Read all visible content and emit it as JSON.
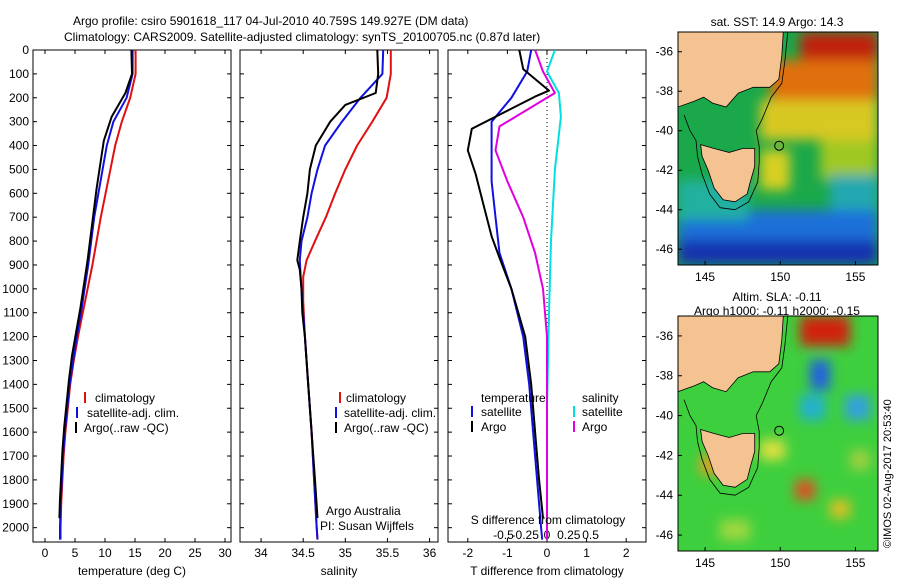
{
  "header": {
    "title_line1": "Argo profile: csiro 5901618_117 04-Jul-2010 40.759S 149.927E (DM data)",
    "title_line2": "Climatology: CARS2009. Satellite-adjusted climatology: synTS_20100705.nc (0.87d later)"
  },
  "colors": {
    "climatology": "#e01010",
    "satellite": "#1010e0",
    "argo": "#000000",
    "salinity_satellite": "#00e0e0",
    "salinity_argo": "#e000e0",
    "land": "#f5c392",
    "deep_ocean": "#101f90"
  },
  "timestamp": "©IMOS 02-Aug-2017 20:53:40",
  "chart_data": [
    {
      "type": "line",
      "id": "temperature",
      "xlabel": "temperature (deg C)",
      "xlim": [
        -2,
        31
      ],
      "ylim": [
        2060,
        0
      ],
      "x_ticks": [
        0,
        5,
        10,
        15,
        20,
        25,
        30
      ],
      "y_ticks": [
        0,
        100,
        200,
        300,
        400,
        500,
        600,
        700,
        800,
        900,
        1000,
        1100,
        1200,
        1300,
        1400,
        1500,
        1600,
        1700,
        1800,
        1900,
        2000
      ],
      "legend": [
        "climatology",
        "satellite-adj. clim.",
        "Argo(..raw -QC)"
      ],
      "series": [
        {
          "name": "climatology",
          "color": "#e01010",
          "points": [
            [
              15.1,
              0
            ],
            [
              15.1,
              100
            ],
            [
              14.2,
              200
            ],
            [
              12.8,
              300
            ],
            [
              11.7,
              400
            ],
            [
              10.9,
              500
            ],
            [
              10.1,
              600
            ],
            [
              9.3,
              700
            ],
            [
              8.6,
              800
            ],
            [
              7.9,
              900
            ],
            [
              7.1,
              1000
            ],
            [
              6.3,
              1100
            ],
            [
              5.5,
              1200
            ],
            [
              4.8,
              1300
            ],
            [
              4.2,
              1400
            ],
            [
              3.8,
              1500
            ],
            [
              3.4,
              1600
            ],
            [
              3.1,
              1700
            ],
            [
              2.9,
              1800
            ],
            [
              2.7,
              1900
            ],
            [
              2.6,
              2000
            ],
            [
              2.6,
              2050
            ]
          ]
        },
        {
          "name": "satellite-adj. clim.",
          "color": "#1010e0",
          "points": [
            [
              14.6,
              0
            ],
            [
              14.6,
              100
            ],
            [
              13.6,
              200
            ],
            [
              11.4,
              300
            ],
            [
              10.3,
              400
            ],
            [
              9.6,
              500
            ],
            [
              8.9,
              600
            ],
            [
              8.2,
              700
            ],
            [
              7.7,
              800
            ],
            [
              7.2,
              900
            ],
            [
              6.6,
              1000
            ],
            [
              6.0,
              1100
            ],
            [
              5.3,
              1200
            ],
            [
              4.7,
              1300
            ],
            [
              4.1,
              1400
            ],
            [
              3.7,
              1500
            ],
            [
              3.3,
              1600
            ],
            [
              3.0,
              1700
            ],
            [
              2.8,
              1800
            ],
            [
              2.6,
              1900
            ],
            [
              2.5,
              2000
            ],
            [
              2.5,
              2050
            ]
          ]
        },
        {
          "name": "Argo(..raw -QC)",
          "color": "#000000",
          "points": [
            [
              14.4,
              0
            ],
            [
              14.5,
              100
            ],
            [
              13.4,
              180
            ],
            [
              11.1,
              280
            ],
            [
              9.8,
              380
            ],
            [
              9.2,
              480
            ],
            [
              8.6,
              580
            ],
            [
              8.1,
              680
            ],
            [
              7.6,
              780
            ],
            [
              7.1,
              880
            ],
            [
              6.5,
              980
            ],
            [
              5.9,
              1080
            ],
            [
              5.2,
              1180
            ],
            [
              4.5,
              1280
            ],
            [
              4.0,
              1380
            ],
            [
              3.6,
              1480
            ],
            [
              3.2,
              1580
            ],
            [
              2.9,
              1680
            ],
            [
              2.7,
              1780
            ],
            [
              2.5,
              1880
            ],
            [
              2.4,
              1960
            ]
          ]
        }
      ]
    },
    {
      "type": "line",
      "id": "salinity",
      "xlabel": "salinity",
      "xlim": [
        33.75,
        36.1
      ],
      "ylim": [
        2060,
        0
      ],
      "x_ticks": [
        34,
        34.5,
        35,
        35.5,
        36
      ],
      "x_tick_labels": [
        "34",
        "34.5",
        "35",
        "35.5",
        "36"
      ],
      "legend": [
        "climatology",
        "satellite-adj. clim.",
        "Argo(..raw -QC)"
      ],
      "annotation": [
        "Argo Australia",
        "PI: Susan Wijffels"
      ],
      "series": [
        {
          "name": "climatology",
          "color": "#e01010",
          "points": [
            [
              35.54,
              0
            ],
            [
              35.54,
              100
            ],
            [
              35.49,
              200
            ],
            [
              35.32,
              300
            ],
            [
              35.14,
              400
            ],
            [
              35.0,
              500
            ],
            [
              34.88,
              600
            ],
            [
              34.77,
              700
            ],
            [
              34.64,
              800
            ],
            [
              34.54,
              880
            ],
            [
              34.5,
              950
            ],
            [
              34.5,
              1050
            ],
            [
              34.52,
              1200
            ],
            [
              34.56,
              1400
            ],
            [
              34.6,
              1600
            ],
            [
              34.63,
              1800
            ],
            [
              34.66,
              2000
            ],
            [
              34.67,
              2050
            ]
          ]
        },
        {
          "name": "satellite-adj. clim.",
          "color": "#1010e0",
          "points": [
            [
              35.45,
              0
            ],
            [
              35.44,
              100
            ],
            [
              35.18,
              200
            ],
            [
              34.96,
              300
            ],
            [
              34.76,
              400
            ],
            [
              34.67,
              500
            ],
            [
              34.6,
              600
            ],
            [
              34.55,
              700
            ],
            [
              34.48,
              800
            ],
            [
              34.46,
              880
            ],
            [
              34.47,
              950
            ],
            [
              34.49,
              1050
            ],
            [
              34.52,
              1200
            ],
            [
              34.56,
              1400
            ],
            [
              34.6,
              1600
            ],
            [
              34.63,
              1800
            ],
            [
              34.66,
              2000
            ],
            [
              34.67,
              2050
            ]
          ]
        },
        {
          "name": "Argo(..raw -QC)",
          "color": "#000000",
          "points": [
            [
              35.38,
              0
            ],
            [
              35.39,
              100
            ],
            [
              35.36,
              180
            ],
            [
              35.0,
              230
            ],
            [
              34.82,
              300
            ],
            [
              34.65,
              400
            ],
            [
              34.58,
              500
            ],
            [
              34.55,
              600
            ],
            [
              34.5,
              700
            ],
            [
              34.46,
              800
            ],
            [
              34.43,
              880
            ],
            [
              34.46,
              920
            ],
            [
              34.48,
              1000
            ],
            [
              34.49,
              1100
            ],
            [
              34.52,
              1200
            ],
            [
              34.56,
              1400
            ],
            [
              34.6,
              1600
            ],
            [
              34.64,
              1800
            ],
            [
              34.67,
              1960
            ]
          ]
        }
      ]
    },
    {
      "type": "line",
      "id": "difference",
      "xlabel": "T difference from climatology",
      "xlabel2": "S difference from climatology",
      "xlim": [
        -2.5,
        2.5
      ],
      "ylim": [
        2060,
        0
      ],
      "x_ticks": [
        -2,
        -1,
        0,
        1,
        2
      ],
      "x2_ticks": [
        -0.5,
        -0.25,
        0,
        0.25,
        0.5
      ],
      "x2_tick_labels": [
        "-0.5",
        "-0.25",
        "0",
        "0.25",
        "0.5"
      ],
      "zero_line": "dotted",
      "legend_temperature": [
        "temperature",
        "satellite",
        "Argo"
      ],
      "legend_salinity": [
        "salinity",
        "satellite",
        "Argo"
      ],
      "series": [
        {
          "name": "satellite",
          "variable": "temperature",
          "color": "#1010e0",
          "points": [
            [
              -0.4,
              0
            ],
            [
              -0.5,
              90
            ],
            [
              -0.9,
              200
            ],
            [
              -1.4,
              300
            ],
            [
              -1.4,
              400
            ],
            [
              -1.4,
              550
            ],
            [
              -1.3,
              700
            ],
            [
              -1.2,
              850
            ],
            [
              -0.9,
              1000
            ],
            [
              -0.6,
              1200
            ],
            [
              -0.45,
              1400
            ],
            [
              -0.35,
              1600
            ],
            [
              -0.25,
              1800
            ],
            [
              -0.15,
              2000
            ],
            [
              -0.12,
              2050
            ]
          ]
        },
        {
          "name": "Argo",
          "variable": "temperature",
          "color": "#000000",
          "points": [
            [
              -0.7,
              0
            ],
            [
              -0.6,
              80
            ],
            [
              0.05,
              170
            ],
            [
              -0.3,
              195
            ],
            [
              -1.9,
              330
            ],
            [
              -2.0,
              420
            ],
            [
              -1.8,
              520
            ],
            [
              -1.6,
              650
            ],
            [
              -1.4,
              780
            ],
            [
              -1.2,
              870
            ],
            [
              -0.9,
              1000
            ],
            [
              -0.55,
              1200
            ],
            [
              -0.4,
              1400
            ],
            [
              -0.3,
              1600
            ],
            [
              -0.2,
              1800
            ],
            [
              -0.1,
              1960
            ]
          ]
        },
        {
          "name": "satellite",
          "variable": "salinity",
          "color": "#00e0e0",
          "points": [
            [
              0.2,
              0
            ],
            [
              0.0,
              90
            ],
            [
              0.3,
              180
            ],
            [
              0.35,
              280
            ],
            [
              0.2,
              500
            ],
            [
              0.1,
              800
            ],
            [
              0.05,
              1100
            ],
            [
              0.0,
              1500
            ],
            [
              0.0,
              2050
            ]
          ]
        },
        {
          "name": "Argo",
          "variable": "salinity",
          "color": "#e000e0",
          "points": [
            [
              -0.3,
              0
            ],
            [
              -0.1,
              90
            ],
            [
              0.2,
              180
            ],
            [
              -1.2,
              320
            ],
            [
              -1.3,
              420
            ],
            [
              -1.0,
              550
            ],
            [
              -0.6,
              700
            ],
            [
              -0.3,
              850
            ],
            [
              -0.1,
              1000
            ],
            [
              0.0,
              1200
            ],
            [
              0.0,
              2050
            ]
          ]
        }
      ]
    },
    {
      "type": "heatmap",
      "id": "sst_map",
      "title": "sat. SST: 14.9 Argo: 14.3",
      "xlim": [
        143.2,
        156.5
      ],
      "ylim": [
        -46.8,
        -35.0
      ],
      "x_ticks": [
        145,
        150,
        155
      ],
      "y_ticks": [
        -36,
        -38,
        -40,
        -42,
        -44,
        -46
      ],
      "argo_position": {
        "lon": 149.927,
        "lat": -40.759
      }
    },
    {
      "type": "heatmap",
      "id": "sla_map",
      "title_line1": "Altim. SLA: -0.11",
      "title_line2": "Argo h1000: -0.11 h2000: -0.15",
      "xlim": [
        143.2,
        156.5
      ],
      "ylim": [
        -46.8,
        -35.0
      ],
      "x_ticks": [
        145,
        150,
        155
      ],
      "y_ticks": [
        -36,
        -38,
        -40,
        -42,
        -44,
        -46
      ],
      "argo_position": {
        "lon": 149.927,
        "lat": -40.759
      }
    }
  ]
}
